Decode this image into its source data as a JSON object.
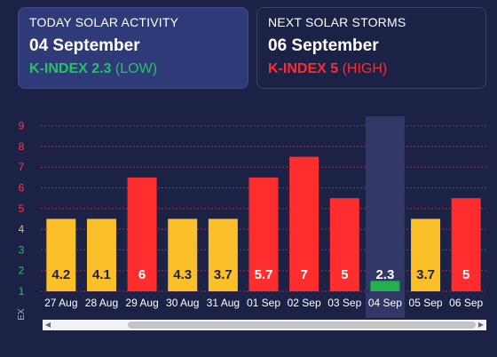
{
  "today": {
    "label": "TODAY SOLAR ACTIVITY",
    "date": "04 September",
    "kindex": "K-INDEX 2.3",
    "level": "(LOW)"
  },
  "next": {
    "label": "NEXT SOLAR STORMS",
    "date": "06 September",
    "kindex": "K-INDEX 5",
    "level": "(HIGH)"
  },
  "chart_data": {
    "type": "bar",
    "ylabel": "K-INDEX",
    "ylim": [
      1,
      9
    ],
    "yticks": [
      1,
      2,
      3,
      4,
      5,
      6,
      7,
      8,
      9
    ],
    "categories": [
      "27 Aug",
      "28 Aug",
      "29 Aug",
      "30 Aug",
      "31 Aug",
      "01 Sep",
      "02 Sep",
      "03 Sep",
      "04 Sep",
      "05 Sep",
      "06 Sep"
    ],
    "values": [
      4.2,
      4.1,
      6,
      4.3,
      3.7,
      5.7,
      7,
      5,
      2.3,
      3.7,
      5
    ],
    "bar_levels": [
      4.5,
      4.5,
      6.5,
      4.5,
      4.5,
      6.5,
      7.5,
      5.5,
      1.5,
      4.5,
      5.5
    ],
    "labels": [
      "4.2",
      "4.1",
      "6",
      "4.3",
      "3.7",
      "5.7",
      "7",
      "5",
      "2.3",
      "3.7",
      "5"
    ],
    "highlight": "04 Sep",
    "grid": true,
    "colors": {
      "low": "#22b14c",
      "moderate": "#fbbf2a",
      "high": "#ff2d2d",
      "ytick_green": "#22c55e",
      "ytick_yellow": "#fbbf2a",
      "ytick_red": "#ff3b3b",
      "grid": "#9a3346",
      "highlight": "#313866"
    }
  }
}
